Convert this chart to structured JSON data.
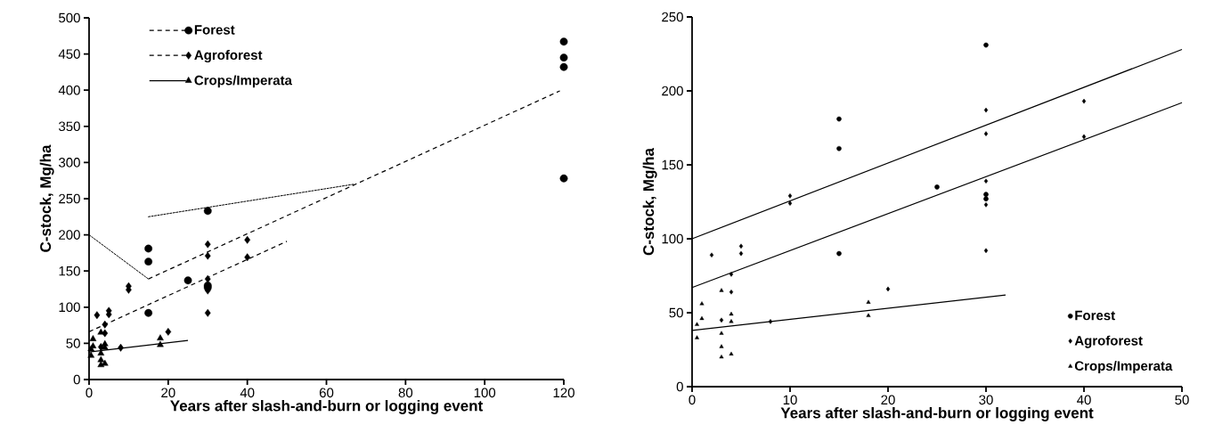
{
  "chart_data": [
    {
      "type": "scatter",
      "xlabel": "Years after slash-and-burn or logging event",
      "ylabel": "C-stock, Mg/ha",
      "xlim": [
        0,
        120
      ],
      "ylim": [
        0,
        500
      ],
      "xticks": [
        0,
        20,
        40,
        60,
        80,
        100,
        120
      ],
      "yticks": [
        0,
        50,
        100,
        150,
        200,
        250,
        300,
        350,
        400,
        450,
        500
      ],
      "legend": "top left",
      "series": [
        {
          "name": "Forest",
          "color": "#000000",
          "marker": "circle",
          "x": [
            15,
            15,
            15,
            25,
            30,
            30,
            30,
            120,
            120,
            120,
            120
          ],
          "values": [
            181,
            163,
            92,
            137,
            233,
            130,
            127,
            467,
            445,
            432,
            278
          ]
        },
        {
          "name": "Agroforest",
          "color": "#000000",
          "marker": "diamond",
          "x": [
            2,
            3,
            4,
            4,
            5,
            5,
            8,
            10,
            10,
            20,
            30,
            30,
            30,
            30,
            30,
            40,
            40
          ],
          "values": [
            89,
            45,
            76,
            64,
            95,
            90,
            44,
            129,
            124,
            66,
            187,
            171,
            139,
            123,
            92,
            193,
            169
          ]
        },
        {
          "name": "Crops/Imperata",
          "color": "#000000",
          "marker": "triangle",
          "x": [
            0.5,
            0.5,
            1,
            1,
            3,
            3,
            3,
            3,
            4,
            4,
            4,
            18,
            18
          ],
          "values": [
            33,
            42,
            56,
            46,
            65,
            36,
            27,
            20,
            49,
            44,
            22,
            57,
            48
          ]
        },
        {
          "type": "line",
          "name": "Forest",
          "color": "#000000",
          "line_style": "dashed",
          "x": [
            15,
            119
          ],
          "values": [
            139,
            399
          ]
        },
        {
          "type": "line",
          "name": "Agroforest",
          "color": "#000000",
          "line_style": "dashed",
          "x": [
            0,
            50
          ],
          "values": [
            66,
            191
          ]
        },
        {
          "type": "line",
          "name": "Crops/Imperata",
          "color": "#000000",
          "line_style": "solid",
          "x": [
            0,
            25
          ],
          "values": [
            38,
            54
          ]
        },
        {
          "type": "line",
          "color": "#000000",
          "line_style": "dotted",
          "x": [
            0,
            15
          ],
          "values": [
            200,
            139
          ]
        },
        {
          "type": "line",
          "color": "#000000",
          "line_style": "dotted",
          "x": [
            15,
            67
          ],
          "values": [
            225,
            270
          ]
        }
      ]
    },
    {
      "type": "scatter",
      "xlabel": "Years after slash-and-burn or logging event",
      "ylabel": "C-stock, Mg/ha",
      "xlim": [
        0,
        50
      ],
      "ylim": [
        0,
        250
      ],
      "xticks": [
        0,
        10,
        20,
        30,
        40,
        50
      ],
      "yticks": [
        0,
        50,
        100,
        150,
        200,
        250
      ],
      "legend": "bottom right",
      "series": [
        {
          "name": "Forest",
          "color": "#000000",
          "marker": "circle",
          "x": [
            15,
            15,
            15,
            25,
            30,
            30,
            30
          ],
          "values": [
            181,
            161,
            90,
            135,
            231,
            130,
            127
          ]
        },
        {
          "name": "Agroforest",
          "color": "#000000",
          "marker": "diamond",
          "x": [
            2,
            3,
            4,
            4,
            5,
            5,
            8,
            10,
            10,
            20,
            30,
            30,
            30,
            30,
            30,
            30,
            40,
            40
          ],
          "values": [
            89,
            45,
            76,
            64,
            95,
            90,
            44,
            129,
            124,
            66,
            187,
            171,
            139,
            127,
            123,
            92,
            193,
            169
          ]
        },
        {
          "name": "Crops/Imperata",
          "color": "#000000",
          "marker": "triangle",
          "x": [
            0.5,
            0.5,
            1,
            1,
            3,
            3,
            3,
            3,
            4,
            4,
            4,
            18,
            18
          ],
          "values": [
            33,
            42,
            56,
            46,
            65,
            36,
            27,
            20,
            49,
            44,
            22,
            57,
            48
          ]
        },
        {
          "type": "line",
          "color": "#000000",
          "line_style": "solid",
          "x": [
            0,
            50
          ],
          "values": [
            100,
            228
          ]
        },
        {
          "type": "line",
          "color": "#000000",
          "line_style": "solid",
          "x": [
            0,
            50
          ],
          "values": [
            67,
            192
          ]
        },
        {
          "type": "line",
          "color": "#000000",
          "line_style": "solid",
          "x": [
            0,
            32
          ],
          "values": [
            38,
            62
          ]
        }
      ]
    }
  ]
}
